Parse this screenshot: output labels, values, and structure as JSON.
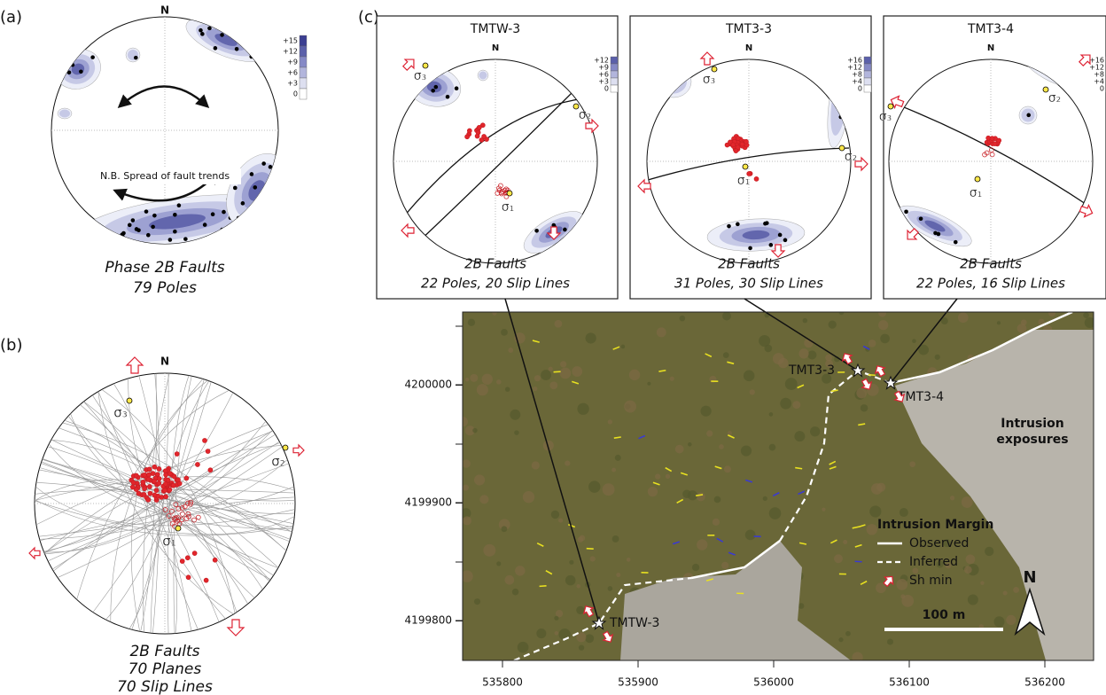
{
  "panel_a": {
    "label": "(a)",
    "north": "N",
    "colorbar": [
      "+15",
      "+12",
      "+9",
      "+6",
      "+3",
      "0"
    ],
    "note": "N.B. Spread of fault trends",
    "caption": [
      "Phase 2B Faults",
      "79 Poles"
    ]
  },
  "panel_b": {
    "label": "(b)",
    "north": "N",
    "sigma_labels": [
      "σ₃",
      "σ₂",
      "σ₁"
    ],
    "caption": [
      "2B Faults",
      "70 Planes",
      "70 Slip Lines"
    ]
  },
  "panel_c": {
    "label": "(c)",
    "stereonets": [
      {
        "title": "TMTW-3",
        "north": "N",
        "colorbar": [
          "+12",
          "+9",
          "+6",
          "+3",
          "0"
        ],
        "sigma_labels": [
          "σ₃",
          "σ₂",
          "σ₁"
        ],
        "caption": [
          "2B Faults",
          "22 Poles, 20 Slip Lines"
        ]
      },
      {
        "title": "TMT3-3",
        "north": "N",
        "colorbar": [
          "+16",
          "+12",
          "+8",
          "+4",
          "0"
        ],
        "sigma_labels": [
          "σ₃",
          "σ₂",
          "σ₁"
        ],
        "caption": [
          "2B Faults",
          "31 Poles, 30 Slip Lines"
        ]
      },
      {
        "title": "TMT3-4",
        "north": "N",
        "colorbar": [
          "+16",
          "+12",
          "+8",
          "+4",
          "0"
        ],
        "sigma_labels": [
          "σ₃",
          "σ₂",
          "σ₁"
        ],
        "caption": [
          "2B Faults",
          "22 Poles, 16 Slip Lines"
        ]
      }
    ]
  },
  "map": {
    "yticks": [
      4200000,
      4199900,
      4199800
    ],
    "xticks": [
      535800,
      535900,
      536000,
      536100,
      536200
    ],
    "sites": [
      "TMT3-3",
      "TMT3-4",
      "TMTW-3"
    ],
    "area_label": [
      "Intrusion",
      "exposures"
    ],
    "legend": {
      "title": "Intrusion Margin",
      "items": [
        "Observed",
        "Inferred",
        "Sh min"
      ]
    },
    "scale": "100 m",
    "north": "N"
  }
}
